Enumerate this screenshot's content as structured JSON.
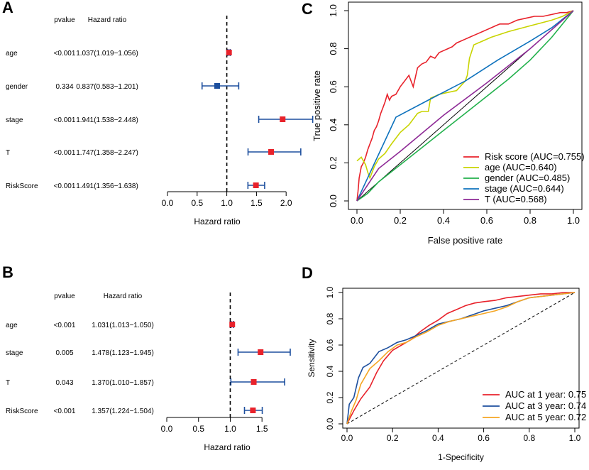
{
  "chart_data": [
    {
      "panel": "A",
      "type": "forest",
      "col_pvalue": "pvalue",
      "col_hr": "Hazard ratio",
      "xlabel": "Hazard ratio",
      "xticks": [
        "0.0",
        "0.5",
        "1.0",
        "1.5",
        "2.0"
      ],
      "xlim": [
        0,
        2.5
      ],
      "ref_line": 1.0,
      "rows": [
        {
          "name": "age",
          "pvalue": "<0.001",
          "hr_text": "1.037(1.019−1.056)",
          "hr": 1.037,
          "lo": 1.019,
          "hi": 1.056,
          "color": "#e8222b"
        },
        {
          "name": "gender",
          "pvalue": "0.334",
          "hr_text": "0.837(0.583−1.201)",
          "hr": 0.837,
          "lo": 0.583,
          "hi": 1.201,
          "color": "#1d4f9e"
        },
        {
          "name": "stage",
          "pvalue": "<0.001",
          "hr_text": "1.941(1.538−2.448)",
          "hr": 1.941,
          "lo": 1.538,
          "hi": 2.448,
          "color": "#e8222b"
        },
        {
          "name": "T",
          "pvalue": "<0.001",
          "hr_text": "1.747(1.358−2.247)",
          "hr": 1.747,
          "lo": 1.358,
          "hi": 2.247,
          "color": "#e8222b"
        },
        {
          "name": "RiskScore",
          "pvalue": "<0.001",
          "hr_text": "1.491(1.356−1.638)",
          "hr": 1.491,
          "lo": 1.356,
          "hi": 1.638,
          "color": "#e8222b"
        }
      ]
    },
    {
      "panel": "B",
      "type": "forest",
      "col_pvalue": "pvalue",
      "col_hr": "Hazard ratio",
      "xlabel": "Hazard ratio",
      "xticks": [
        "0.0",
        "0.5",
        "1.0",
        "1.5"
      ],
      "xlim": [
        0,
        1.945
      ],
      "ref_line": 1.0,
      "rows": [
        {
          "name": "age",
          "pvalue": "<0.001",
          "hr_text": "1.031(1.013−1.050)",
          "hr": 1.031,
          "lo": 1.013,
          "hi": 1.05,
          "color": "#e8222b"
        },
        {
          "name": "stage",
          "pvalue": "0.005",
          "hr_text": "1.478(1.123−1.945)",
          "hr": 1.478,
          "lo": 1.123,
          "hi": 1.945,
          "color": "#e8222b"
        },
        {
          "name": "T",
          "pvalue": "0.043",
          "hr_text": "1.370(1.010−1.857)",
          "hr": 1.37,
          "lo": 1.01,
          "hi": 1.857,
          "color": "#e8222b"
        },
        {
          "name": "RiskScore",
          "pvalue": "<0.001",
          "hr_text": "1.357(1.224−1.504)",
          "hr": 1.357,
          "lo": 1.224,
          "hi": 1.504,
          "color": "#e8222b"
        }
      ]
    },
    {
      "panel": "C",
      "type": "line",
      "xlabel": "False positive rate",
      "ylabel": "True positive rate",
      "xlim": [
        0,
        1
      ],
      "ylim": [
        0,
        1
      ],
      "xticks": [
        "0.0",
        "0.2",
        "0.4",
        "0.6",
        "0.8",
        "1.0"
      ],
      "yticks": [
        "0.0",
        "0.2",
        "0.4",
        "0.6",
        "0.8",
        "1.0"
      ],
      "legend_position": "bottom-right",
      "series": [
        {
          "name": "Risk score (AUC=0.755)",
          "color": "#e8222b",
          "x": [
            0,
            0.005,
            0.01,
            0.02,
            0.03,
            0.04,
            0.05,
            0.06,
            0.07,
            0.08,
            0.09,
            0.1,
            0.11,
            0.12,
            0.13,
            0.14,
            0.15,
            0.16,
            0.18,
            0.2,
            0.22,
            0.24,
            0.26,
            0.28,
            0.3,
            0.32,
            0.34,
            0.36,
            0.38,
            0.4,
            0.42,
            0.44,
            0.46,
            0.48,
            0.5,
            0.52,
            0.54,
            0.56,
            0.58,
            0.6,
            0.62,
            0.64,
            0.66,
            0.7,
            0.74,
            0.78,
            0.82,
            0.86,
            0.9,
            0.94,
            0.97,
            1.0
          ],
          "y": [
            0,
            0.05,
            0.12,
            0.18,
            0.2,
            0.23,
            0.27,
            0.3,
            0.33,
            0.37,
            0.39,
            0.42,
            0.46,
            0.49,
            0.52,
            0.56,
            0.53,
            0.55,
            0.56,
            0.6,
            0.63,
            0.66,
            0.6,
            0.7,
            0.72,
            0.73,
            0.76,
            0.75,
            0.78,
            0.79,
            0.8,
            0.81,
            0.83,
            0.84,
            0.85,
            0.86,
            0.87,
            0.88,
            0.89,
            0.9,
            0.91,
            0.92,
            0.93,
            0.93,
            0.95,
            0.96,
            0.97,
            0.97,
            0.98,
            0.99,
            0.99,
            1.0
          ]
        },
        {
          "name": "age (AUC=0.640)",
          "color": "#c8d400",
          "x": [
            0,
            0.02,
            0.04,
            0.05,
            0.06,
            0.08,
            0.1,
            0.13,
            0.16,
            0.2,
            0.24,
            0.28,
            0.3,
            0.33,
            0.34,
            0.38,
            0.42,
            0.46,
            0.5,
            0.51,
            0.52,
            0.54,
            0.58,
            0.62,
            0.7,
            0.8,
            0.9,
            0.95,
            1.0
          ],
          "y": [
            0.21,
            0.23,
            0.19,
            0.15,
            0.12,
            0.18,
            0.22,
            0.25,
            0.3,
            0.36,
            0.4,
            0.46,
            0.47,
            0.47,
            0.54,
            0.56,
            0.57,
            0.58,
            0.63,
            0.66,
            0.75,
            0.82,
            0.84,
            0.86,
            0.89,
            0.92,
            0.95,
            0.97,
            1.0
          ]
        },
        {
          "name": "gender (AUC=0.485)",
          "color": "#22b14c",
          "x": [
            0,
            0.05,
            0.1,
            0.2,
            0.3,
            0.4,
            0.5,
            0.6,
            0.7,
            0.8,
            0.9,
            1.0
          ],
          "y": [
            0,
            0.04,
            0.1,
            0.19,
            0.28,
            0.37,
            0.46,
            0.55,
            0.64,
            0.74,
            0.86,
            1.0
          ]
        },
        {
          "name": "stage (AUC=0.644)",
          "color": "#0e72bd",
          "x": [
            0,
            0.18,
            0.33,
            0.5,
            0.65,
            0.8,
            0.9,
            1.0
          ],
          "y": [
            0,
            0.44,
            0.53,
            0.63,
            0.74,
            0.84,
            0.91,
            1.0
          ]
        },
        {
          "name": "T (AUC=0.568)",
          "color": "#8e2a96",
          "x": [
            0,
            0.1,
            0.2,
            0.4,
            0.6,
            0.8,
            1.0
          ],
          "y": [
            0,
            0.17,
            0.26,
            0.45,
            0.62,
            0.8,
            1.0
          ]
        }
      ]
    },
    {
      "panel": "D",
      "type": "line",
      "xlabel": "1-Specificity",
      "ylabel": "Sensitivity",
      "xlim": [
        0,
        1
      ],
      "ylim": [
        0,
        1
      ],
      "xticks": [
        "0.0",
        "0.2",
        "0.4",
        "0.6",
        "0.8",
        "1.0"
      ],
      "yticks": [
        "0.0",
        "0.2",
        "0.4",
        "0.6",
        "0.8",
        "1.0"
      ],
      "legend_position": "bottom-right",
      "series": [
        {
          "name": "AUC at 1 year: 0.75",
          "color": "#e8222b",
          "x": [
            0,
            0.03,
            0.06,
            0.1,
            0.13,
            0.16,
            0.2,
            0.24,
            0.28,
            0.32,
            0.36,
            0.4,
            0.44,
            0.48,
            0.52,
            0.56,
            0.6,
            0.65,
            0.7,
            0.75,
            0.8,
            0.85,
            0.9,
            0.95,
            1.0
          ],
          "y": [
            0,
            0.1,
            0.19,
            0.28,
            0.39,
            0.48,
            0.56,
            0.6,
            0.64,
            0.7,
            0.75,
            0.79,
            0.84,
            0.87,
            0.9,
            0.92,
            0.93,
            0.94,
            0.96,
            0.97,
            0.98,
            0.99,
            0.99,
            1.0,
            1.0
          ]
        },
        {
          "name": "AUC at 3 year: 0.74",
          "color": "#1d4f9e",
          "x": [
            0,
            0.01,
            0.03,
            0.05,
            0.07,
            0.1,
            0.14,
            0.18,
            0.22,
            0.26,
            0.3,
            0.35,
            0.4,
            0.45,
            0.5,
            0.55,
            0.6,
            0.65,
            0.7,
            0.75,
            0.8,
            0.9,
            1.0
          ],
          "y": [
            0,
            0.15,
            0.2,
            0.35,
            0.43,
            0.46,
            0.55,
            0.58,
            0.62,
            0.64,
            0.67,
            0.71,
            0.76,
            0.78,
            0.8,
            0.83,
            0.86,
            0.88,
            0.9,
            0.93,
            0.96,
            0.98,
            1.0
          ]
        },
        {
          "name": "AUC at 5 year: 0.72",
          "color": "#f5a623",
          "x": [
            0,
            0.02,
            0.04,
            0.06,
            0.1,
            0.14,
            0.18,
            0.22,
            0.26,
            0.3,
            0.35,
            0.4,
            0.45,
            0.5,
            0.55,
            0.6,
            0.65,
            0.7,
            0.75,
            0.8,
            0.9,
            1.0
          ],
          "y": [
            0,
            0.1,
            0.18,
            0.3,
            0.42,
            0.48,
            0.55,
            0.6,
            0.62,
            0.66,
            0.7,
            0.75,
            0.78,
            0.8,
            0.82,
            0.84,
            0.86,
            0.89,
            0.93,
            0.96,
            0.98,
            1.0
          ]
        }
      ]
    }
  ]
}
